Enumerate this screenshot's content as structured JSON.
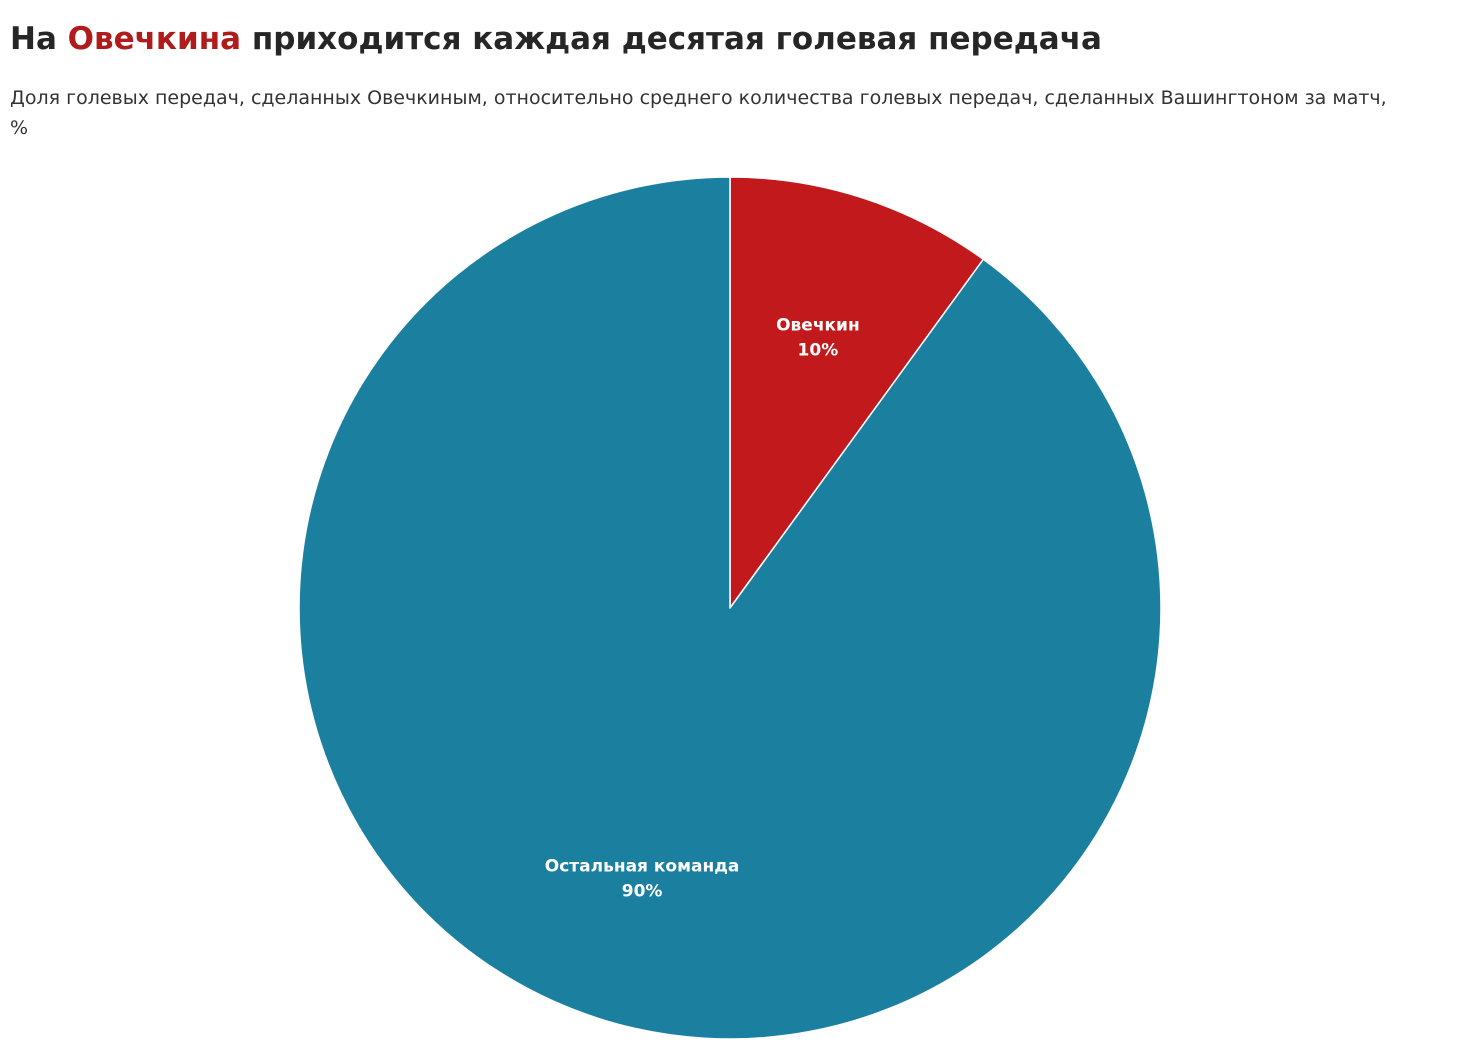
{
  "header": {
    "title_prefix": "На ",
    "title_accent": "Овечкина",
    "title_suffix": " приходится каждая десятая голевая передача",
    "subtitle": "Доля голевых передач, сделанных Овечкиным, относительно среднего количества голевых передач, сделанных Вашингтоном за матч, %"
  },
  "colors": {
    "accent_text": "#b01c1c",
    "slice_separator": "#ffffff"
  },
  "chart_data": {
    "type": "pie",
    "title": "На Овечкина приходится каждая десятая голевая передача",
    "subtitle": "Доля голевых передач, сделанных Овечкиным, относительно среднего количества голевых передач, сделанных Вашингтоном за матч, %",
    "start_angle": "12 o'clock, clockwise",
    "legend": "none",
    "slices": [
      {
        "label": "Овечкин",
        "value": 10,
        "value_label": "10%",
        "color": "#c21a1c"
      },
      {
        "label": "Остальная команда",
        "value": 90,
        "value_label": "90%",
        "color": "#1b7fa0"
      }
    ]
  }
}
